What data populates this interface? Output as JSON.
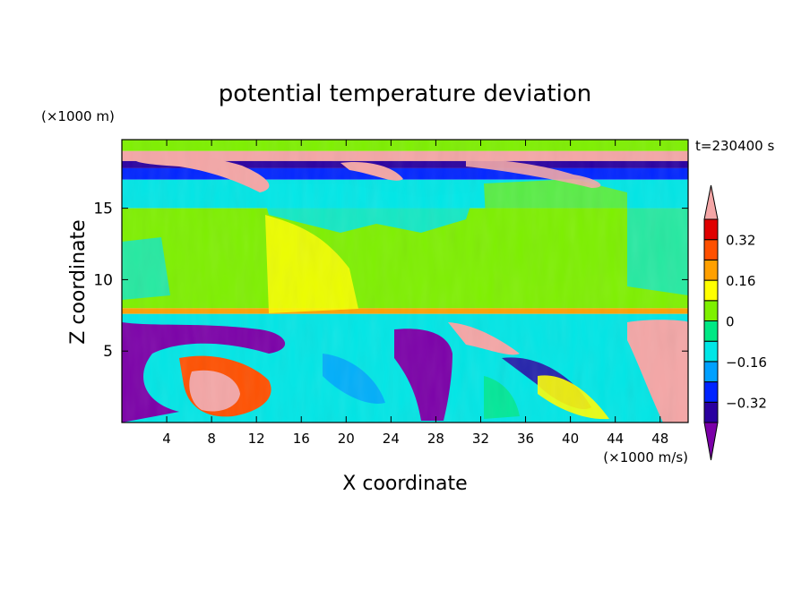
{
  "chart_data": {
    "type": "heatmap",
    "title": "potential temperature deviation",
    "xlabel": "X coordinate",
    "ylabel": "Z coordinate",
    "x_unit": "(×1000 m/s)",
    "y_unit": "(×1000 m)",
    "time_label": "t=230400 s",
    "xlim": [
      0,
      50.5
    ],
    "ylim": [
      0,
      19.8
    ],
    "x_ticks": [
      4,
      8,
      12,
      16,
      20,
      24,
      28,
      32,
      36,
      40,
      44,
      48
    ],
    "y_ticks": [
      5,
      10,
      15
    ],
    "colorbar": {
      "levels": [
        -0.4,
        -0.32,
        -0.24,
        -0.16,
        -0.08,
        0,
        0.08,
        0.16,
        0.24,
        0.32,
        0.4
      ],
      "tick_labels": [
        "0.32",
        "0.16",
        "0",
        "−0.16",
        "−0.32"
      ],
      "tick_values": [
        0.32,
        0.16,
        0,
        -0.16,
        -0.32
      ],
      "colors": [
        "#7b00a8",
        "#2a00a0",
        "#0024ff",
        "#00a0ff",
        "#00e6e6",
        "#00e884",
        "#7ef000",
        "#ffff00",
        "#ffa000",
        "#ff5000",
        "#e00000",
        "#f4a6a6"
      ]
    },
    "bands": [
      {
        "z": [
          19.0,
          19.8
        ],
        "value": 0.02
      },
      {
        "z": [
          18.3,
          19.0
        ],
        "value": 0.45
      },
      {
        "z": [
          17.8,
          18.3
        ],
        "value": -0.35
      },
      {
        "z": [
          17.0,
          17.8
        ],
        "value": -0.28
      },
      {
        "z": [
          15.0,
          17.0
        ],
        "value": -0.1
      },
      {
        "z": [
          8.0,
          15.0
        ],
        "value": 0.05
      },
      {
        "z": [
          7.6,
          8.0
        ],
        "value": 0.18
      },
      {
        "z": [
          0,
          7.6
        ],
        "value": -0.1
      }
    ]
  }
}
